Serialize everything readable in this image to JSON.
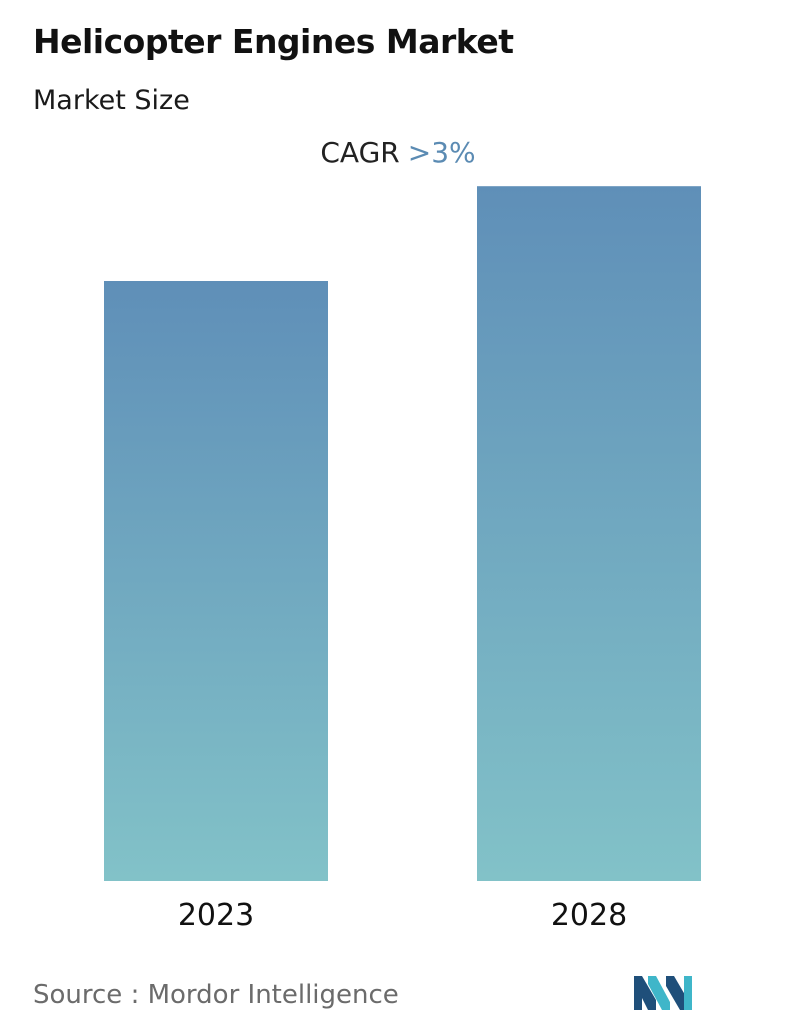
{
  "header": {
    "title": "Helicopter Engines Market",
    "subtitle": "Market Size"
  },
  "cagr": {
    "label": "CAGR",
    "value": ">3%",
    "value_color": "#5b8bb3"
  },
  "chart_data": {
    "type": "bar",
    "categories": [
      "2023",
      "2028"
    ],
    "values": [
      1.0,
      1.158
    ],
    "ylim": [
      0,
      1.2
    ],
    "grid": false,
    "legend": "none",
    "gradient_top": "#5f8fb8",
    "gradient_bottom": "#82c2c8"
  },
  "footer": {
    "source": "Source :  Mordor Intelligence",
    "logo_icon": "mordor-intelligence-logo-icon",
    "logo_colors": [
      "#1f4f7a",
      "#3fb6c9"
    ]
  }
}
